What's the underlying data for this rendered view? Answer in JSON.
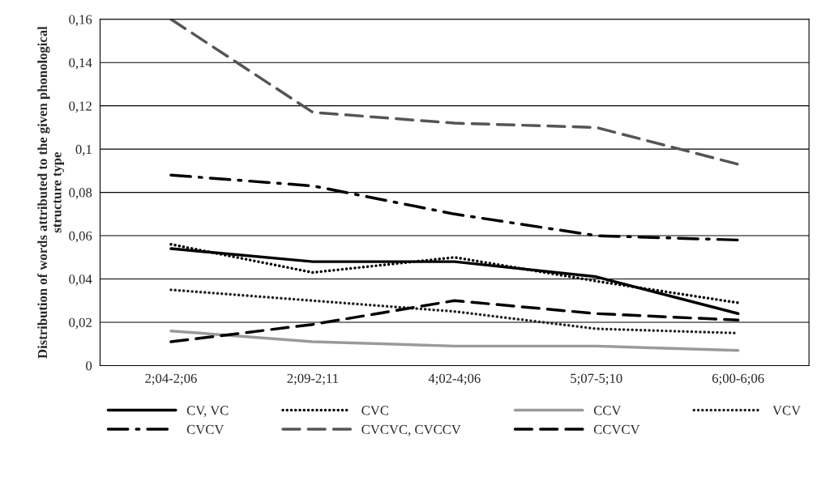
{
  "chart_data": {
    "type": "line",
    "ylabel": "Distribution of words attributed to the given phonological structure type",
    "categories": [
      "2;04-2;06",
      "2;09-2;11",
      "4;02-4;06",
      "5;07-5;10",
      "6;00-6;06"
    ],
    "series": [
      {
        "name": "CV, VC",
        "color": "#000000",
        "line_style": "solid",
        "values": [
          0.054,
          0.048,
          0.048,
          0.041,
          0.024
        ]
      },
      {
        "name": "CVC",
        "color": "#000000",
        "line_style": "dotted",
        "values": [
          0.056,
          0.043,
          0.05,
          0.039,
          0.029
        ]
      },
      {
        "name": "CCV",
        "color": "#9a9a9a",
        "line_style": "solid",
        "values": [
          0.016,
          0.011,
          0.009,
          0.009,
          0.007
        ]
      },
      {
        "name": "VCV",
        "color": "#222222",
        "line_style": "dotted",
        "values": [
          0.035,
          0.03,
          0.025,
          0.017,
          0.015
        ]
      },
      {
        "name": "CVCV",
        "color": "#000000",
        "line_style": "dashdot",
        "values": [
          0.088,
          0.083,
          0.07,
          0.06,
          0.058
        ]
      },
      {
        "name": "CVCVC, CVCCV",
        "color": "#555555",
        "line_style": "dashed",
        "values": [
          0.16,
          0.117,
          0.112,
          0.11,
          0.093
        ]
      },
      {
        "name": "CCVCV",
        "color": "#000000",
        "line_style": "dashed",
        "values": [
          0.011,
          0.019,
          0.03,
          0.024,
          0.021
        ]
      }
    ],
    "ylim": [
      0,
      0.16
    ],
    "yticks": [
      0,
      {
        "value": 0.02,
        "label": "0,02"
      },
      {
        "value": 0.04,
        "label": "0,04"
      },
      {
        "value": 0.06,
        "label": "0,06"
      },
      {
        "value": 0.08,
        "label": "0,08"
      },
      {
        "value": 0.1,
        "label": "0,1"
      },
      {
        "value": 0.12,
        "label": "0,12"
      },
      {
        "value": 0.14,
        "label": "0,14"
      },
      {
        "value": 0.16,
        "label": "0,16"
      }
    ],
    "grid": "y",
    "legend": "bottom",
    "marker": "none"
  }
}
